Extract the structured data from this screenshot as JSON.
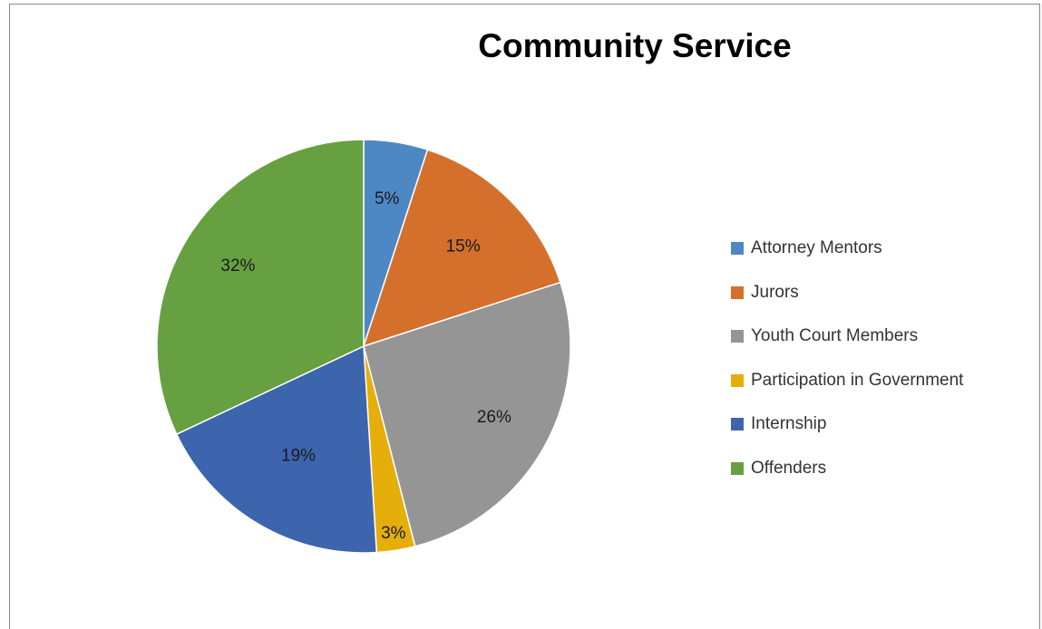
{
  "chart_data": {
    "type": "pie",
    "title": "Community Service",
    "categories": [
      "Attorney Mentors",
      "Jurors",
      "Youth Court Members",
      "Participation in Government",
      "Internship",
      "Offenders"
    ],
    "values": [
      5,
      15,
      26,
      3,
      19,
      32
    ],
    "value_labels": [
      "5%",
      "15%",
      "26%",
      "3%",
      "19%",
      "32%"
    ],
    "colors": [
      "#4E88C4",
      "#D4702B",
      "#959595",
      "#E5AE0A",
      "#3D65AE",
      "#66A040"
    ],
    "legend_position": "right",
    "start_angle": "top, clockwise"
  }
}
